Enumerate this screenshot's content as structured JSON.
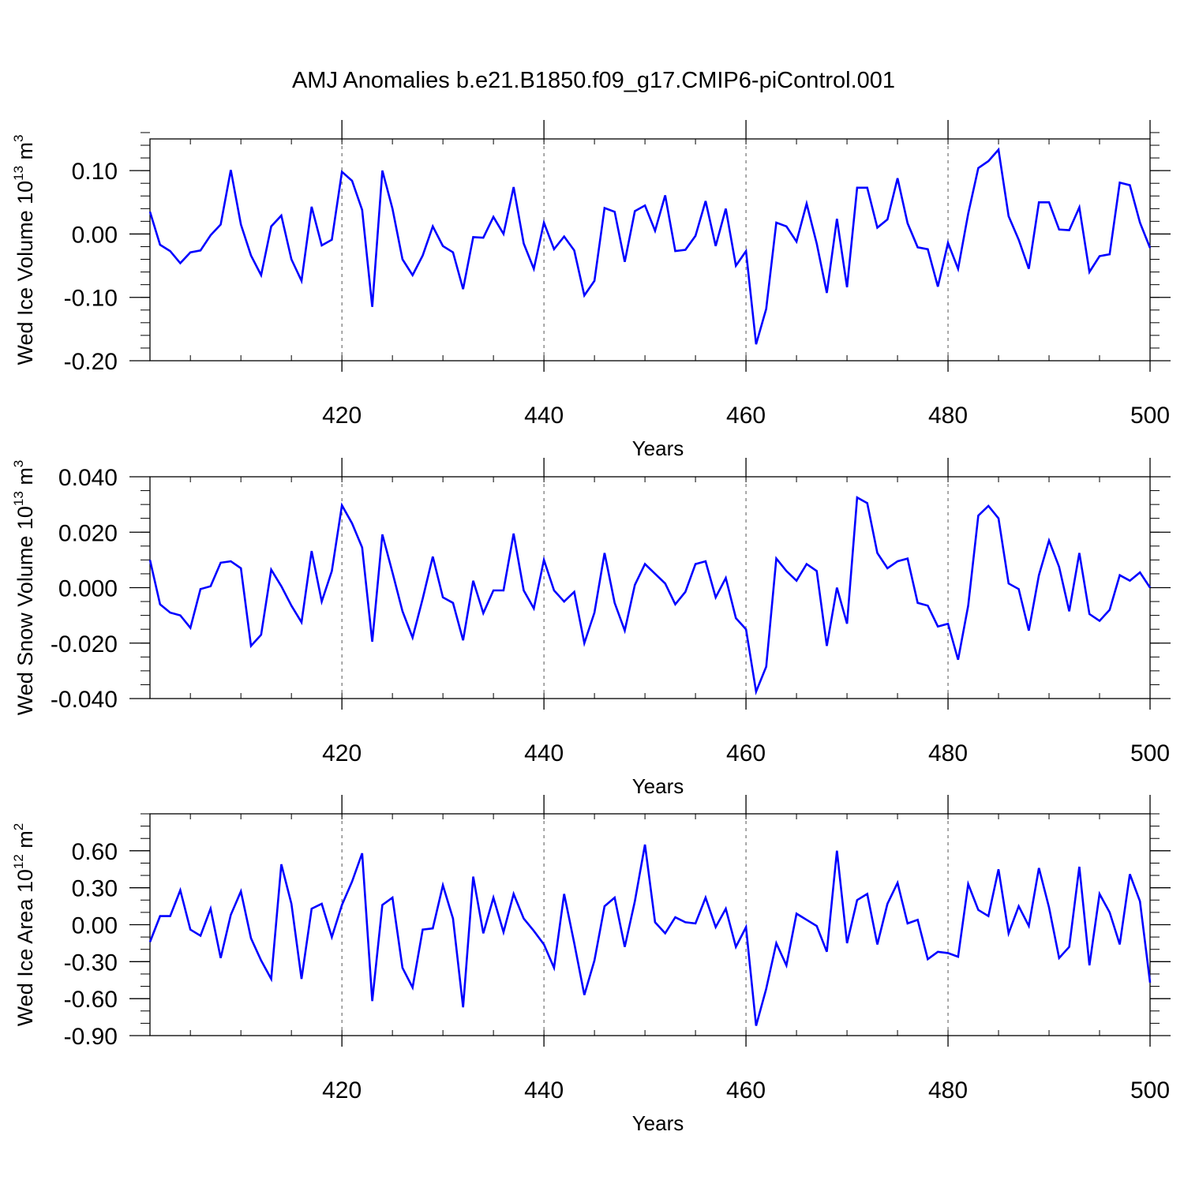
{
  "figure": {
    "title": "AMJ Anomalies b.e21.B1850.f09_g17.CMIP6-piControl.001",
    "line_color": "#0000ff",
    "grid_color": "#555555"
  },
  "chart_data": [
    {
      "type": "line",
      "panel": "wed-ice-volume",
      "ylabel": {
        "text": "Wed Ice Volume 10",
        "exp": "13",
        "unit": " m",
        "unit_exp": "3"
      },
      "xlabel": "Years",
      "xlim": [
        401,
        500
      ],
      "ylim": [
        -0.2,
        0.15
      ],
      "x_ticks": [
        420,
        440,
        460,
        480,
        500
      ],
      "x_tick_labels": [
        "420",
        "440",
        "460",
        "480",
        "500"
      ],
      "y_ticks": [
        -0.2,
        -0.1,
        0.0,
        0.1
      ],
      "y_tick_labels": [
        "-0.20",
        "-0.10",
        "0.00",
        "0.10"
      ],
      "y_minor_step": 0.02,
      "x_minor_step": 5,
      "grid": "vertical-dashed",
      "series": [
        {
          "x": [
            401,
            402,
            403,
            404,
            405,
            406,
            407,
            408,
            409,
            410,
            411,
            412,
            413,
            414,
            415,
            416,
            417,
            418,
            419,
            420,
            421,
            422,
            423,
            424,
            425,
            426,
            427,
            428,
            429,
            430,
            431,
            432,
            433,
            434,
            435,
            436,
            437,
            438,
            439,
            440,
            441,
            442,
            443,
            444,
            445,
            446,
            447,
            448,
            449,
            450,
            451,
            452,
            453,
            454,
            455,
            456,
            457,
            458,
            459,
            460,
            461,
            462,
            463,
            464,
            465,
            466,
            467,
            468,
            469,
            470,
            471,
            472,
            473,
            474,
            475,
            476,
            477,
            478,
            479,
            480,
            481,
            482,
            483,
            484,
            485,
            486,
            487,
            488,
            489,
            490,
            491,
            492,
            493,
            494,
            495,
            496,
            497,
            498,
            499,
            500
          ],
          "values": [
            0.035,
            -0.017,
            -0.027,
            -0.046,
            -0.029,
            -0.026,
            -0.002,
            0.015,
            0.101,
            0.015,
            -0.034,
            -0.065,
            0.012,
            0.029,
            -0.04,
            -0.074,
            0.043,
            -0.018,
            -0.009,
            0.098,
            0.084,
            0.038,
            -0.115,
            0.1,
            0.04,
            -0.04,
            -0.065,
            -0.034,
            0.012,
            -0.019,
            -0.029,
            -0.087,
            -0.005,
            -0.006,
            0.027,
            0.0,
            0.074,
            -0.015,
            -0.055,
            0.018,
            -0.024,
            -0.004,
            -0.026,
            -0.097,
            -0.074,
            0.041,
            0.035,
            -0.044,
            0.036,
            0.045,
            0.005,
            0.061,
            -0.027,
            -0.025,
            -0.003,
            0.052,
            -0.019,
            0.04,
            -0.05,
            -0.027,
            -0.174,
            -0.118,
            0.018,
            0.012,
            -0.012,
            0.048,
            -0.015,
            -0.093,
            0.024,
            -0.084,
            0.073,
            0.073,
            0.01,
            0.023,
            0.088,
            0.017,
            -0.021,
            -0.024,
            -0.083,
            -0.014,
            -0.055,
            0.032,
            0.104,
            0.115,
            0.133,
            0.028,
            -0.009,
            -0.055,
            0.05,
            0.05,
            0.007,
            0.006,
            0.042,
            -0.06,
            -0.035,
            -0.032,
            0.081,
            0.077,
            0.018,
            -0.022
          ]
        }
      ]
    },
    {
      "type": "line",
      "panel": "wed-snow-volume",
      "ylabel": {
        "text": "Wed Snow Volume 10",
        "exp": "13",
        "unit": " m",
        "unit_exp": "3"
      },
      "xlabel": "Years",
      "xlim": [
        401,
        500
      ],
      "ylim": [
        -0.04,
        0.04
      ],
      "x_ticks": [
        420,
        440,
        460,
        480,
        500
      ],
      "x_tick_labels": [
        "420",
        "440",
        "460",
        "480",
        "500"
      ],
      "y_ticks": [
        -0.04,
        -0.02,
        0.0,
        0.02,
        0.04
      ],
      "y_tick_labels": [
        "-0.040",
        "-0.020",
        "0.000",
        "0.020",
        "0.040"
      ],
      "y_minor_step": 0.005,
      "x_minor_step": 5,
      "grid": "vertical-dashed",
      "series": [
        {
          "x": [
            401,
            402,
            403,
            404,
            405,
            406,
            407,
            408,
            409,
            410,
            411,
            412,
            413,
            414,
            415,
            416,
            417,
            418,
            419,
            420,
            421,
            422,
            423,
            424,
            425,
            426,
            427,
            428,
            429,
            430,
            431,
            432,
            433,
            434,
            435,
            436,
            437,
            438,
            439,
            440,
            441,
            442,
            443,
            444,
            445,
            446,
            447,
            448,
            449,
            450,
            451,
            452,
            453,
            454,
            455,
            456,
            457,
            458,
            459,
            460,
            461,
            462,
            463,
            464,
            465,
            466,
            467,
            468,
            469,
            470,
            471,
            472,
            473,
            474,
            475,
            476,
            477,
            478,
            479,
            480,
            481,
            482,
            483,
            484,
            485,
            486,
            487,
            488,
            489,
            490,
            491,
            492,
            493,
            494,
            495,
            496,
            497,
            498,
            499,
            500
          ],
          "values": [
            0.01,
            -0.006,
            -0.009,
            -0.01,
            -0.0145,
            -0.0005,
            0.0005,
            0.009,
            0.0095,
            0.007,
            -0.021,
            -0.017,
            0.0065,
            0.0005,
            -0.0065,
            -0.0125,
            0.0132,
            -0.005,
            0.006,
            0.0297,
            0.0232,
            0.0145,
            -0.0195,
            0.0192,
            0.0055,
            -0.0085,
            -0.018,
            -0.004,
            0.0112,
            -0.0035,
            -0.0055,
            -0.019,
            0.0025,
            -0.0092,
            -0.001,
            -0.001,
            0.0195,
            -0.001,
            -0.0075,
            0.01,
            -0.001,
            -0.005,
            -0.0015,
            -0.02,
            -0.009,
            0.0125,
            -0.0055,
            -0.0155,
            0.001,
            0.0085,
            0.005,
            0.0015,
            -0.006,
            -0.0015,
            0.0085,
            0.0095,
            -0.0035,
            0.0035,
            -0.011,
            -0.015,
            -0.0375,
            -0.0285,
            0.0105,
            0.006,
            0.0025,
            0.0085,
            0.006,
            -0.021,
            0.0,
            -0.013,
            0.0325,
            0.0305,
            0.0125,
            0.007,
            0.0095,
            0.0105,
            -0.0055,
            -0.0065,
            -0.014,
            -0.013,
            -0.026,
            -0.0065,
            0.026,
            0.0295,
            0.025,
            0.0015,
            -0.0005,
            -0.0155,
            0.0045,
            0.017,
            0.0075,
            -0.0085,
            0.0125,
            -0.0095,
            -0.012,
            -0.008,
            0.0045,
            0.0025,
            0.0055,
            0.0
          ]
        }
      ]
    },
    {
      "type": "line",
      "panel": "wed-ice-area",
      "ylabel": {
        "text": "Wed Ice Area 10",
        "exp": "12",
        "unit": " m",
        "unit_exp": "2"
      },
      "xlabel": "Years",
      "xlim": [
        401,
        500
      ],
      "ylim": [
        -0.9,
        0.9
      ],
      "x_ticks": [
        420,
        440,
        460,
        480,
        500
      ],
      "x_tick_labels": [
        "420",
        "440",
        "460",
        "480",
        "500"
      ],
      "y_ticks": [
        -0.9,
        -0.6,
        -0.3,
        0.0,
        0.3,
        0.6
      ],
      "y_tick_labels": [
        "-0.90",
        "-0.60",
        "-0.30",
        "0.00",
        "0.30",
        "0.60"
      ],
      "y_minor_step": 0.1,
      "x_minor_step": 5,
      "grid": "vertical-dashed",
      "series": [
        {
          "x": [
            401,
            402,
            403,
            404,
            405,
            406,
            407,
            408,
            409,
            410,
            411,
            412,
            413,
            414,
            415,
            416,
            417,
            418,
            419,
            420,
            421,
            422,
            423,
            424,
            425,
            426,
            427,
            428,
            429,
            430,
            431,
            432,
            433,
            434,
            435,
            436,
            437,
            438,
            439,
            440,
            441,
            442,
            443,
            444,
            445,
            446,
            447,
            448,
            449,
            450,
            451,
            452,
            453,
            454,
            455,
            456,
            457,
            458,
            459,
            460,
            461,
            462,
            463,
            464,
            465,
            466,
            467,
            468,
            469,
            470,
            471,
            472,
            473,
            474,
            475,
            476,
            477,
            478,
            479,
            480,
            481,
            482,
            483,
            484,
            485,
            486,
            487,
            488,
            489,
            490,
            491,
            492,
            493,
            494,
            495,
            496,
            497,
            498,
            499,
            500
          ],
          "values": [
            -0.14,
            0.07,
            0.07,
            0.28,
            -0.04,
            -0.09,
            0.13,
            -0.27,
            0.08,
            0.27,
            -0.11,
            -0.29,
            -0.44,
            0.49,
            0.17,
            -0.44,
            0.13,
            0.17,
            -0.1,
            0.16,
            0.35,
            0.58,
            -0.62,
            0.16,
            0.22,
            -0.35,
            -0.51,
            -0.04,
            -0.03,
            0.32,
            0.05,
            -0.67,
            0.39,
            -0.07,
            0.22,
            -0.06,
            0.25,
            0.05,
            -0.05,
            -0.16,
            -0.35,
            0.25,
            -0.15,
            -0.57,
            -0.29,
            0.15,
            0.22,
            -0.18,
            0.19,
            0.65,
            0.02,
            -0.07,
            0.06,
            0.02,
            0.01,
            0.22,
            -0.02,
            0.13,
            -0.18,
            -0.02,
            -0.82,
            -0.52,
            -0.15,
            -0.33,
            0.09,
            0.04,
            -0.01,
            -0.22,
            0.6,
            -0.15,
            0.2,
            0.25,
            -0.16,
            0.17,
            0.34,
            0.01,
            0.04,
            -0.28,
            -0.22,
            -0.23,
            -0.26,
            0.33,
            0.12,
            0.07,
            0.45,
            -0.07,
            0.15,
            -0.01,
            0.46,
            0.14,
            -0.27,
            -0.18,
            0.47,
            -0.33,
            0.25,
            0.1,
            -0.16,
            0.41,
            0.19,
            -0.47
          ]
        }
      ]
    }
  ]
}
